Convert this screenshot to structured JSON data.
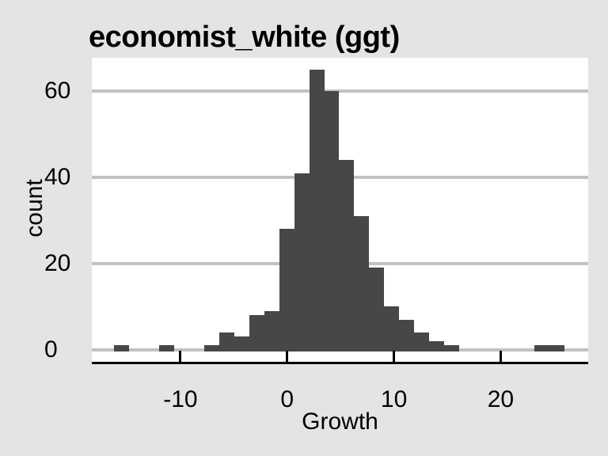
{
  "chart": {
    "title": "economist_white (ggt)",
    "xlabel": "Growth",
    "ylabel": "count"
  },
  "chart_data": {
    "type": "bar",
    "subtype": "histogram",
    "title": "economist_white (ggt)",
    "xlabel": "Growth",
    "ylabel": "count",
    "bin_start": -16.2,
    "bin_width": 1.405,
    "counts": [
      1,
      0,
      0,
      1,
      0,
      0,
      1,
      4,
      3,
      8,
      9,
      28,
      41,
      65,
      60,
      44,
      31,
      19,
      10,
      7,
      4,
      2,
      1,
      0,
      0,
      0,
      0,
      0,
      1,
      1
    ],
    "x_ticks": [
      -10,
      0,
      10,
      20
    ],
    "y_ticks": [
      0,
      20,
      40,
      60
    ],
    "xlim": [
      -18.3,
      28.2
    ],
    "ylim": [
      -3.2,
      67.8
    ],
    "grid": "horizontal-only",
    "legend": "none",
    "bar_color": "#474747",
    "background_color": "#e4e4e4",
    "panel_color": "#ffffff",
    "gridline_color": "#c2c2c2",
    "axis_color": "#000000"
  }
}
